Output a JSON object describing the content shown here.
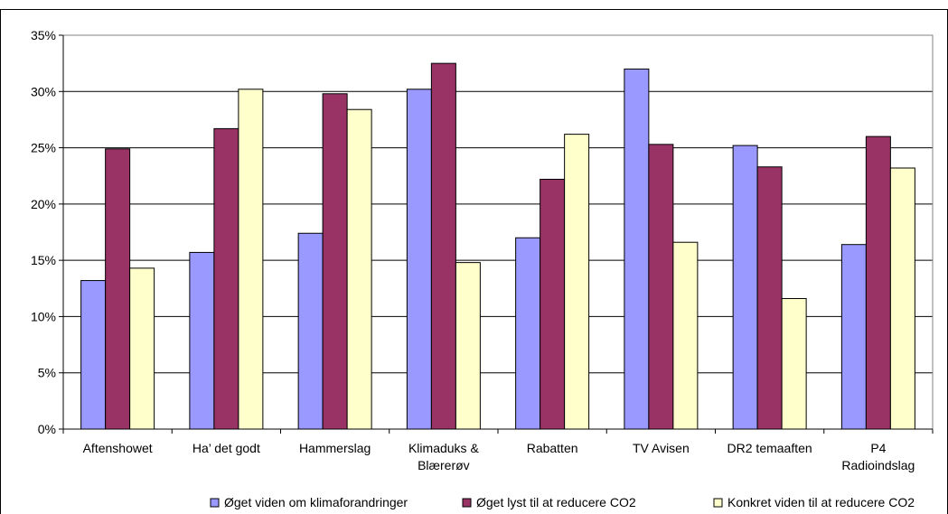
{
  "chart_data": {
    "type": "bar",
    "categories": [
      [
        "Aftenshowet"
      ],
      [
        "Ha’ det godt"
      ],
      [
        "Hammerslag"
      ],
      [
        "Klimaduks &",
        "Blærerøv"
      ],
      [
        "Rabatten"
      ],
      [
        "TV Avisen"
      ],
      [
        "DR2 temaaften"
      ],
      [
        "P4",
        "Radioindslag"
      ]
    ],
    "series": [
      {
        "name": "Øget viden om klimaforandringer",
        "color": "#9999ff",
        "values": [
          0.132,
          0.157,
          0.174,
          0.302,
          0.17,
          0.32,
          0.252,
          0.164
        ]
      },
      {
        "name": "Øget lyst til at reducere CO2",
        "color": "#993366",
        "values": [
          0.249,
          0.267,
          0.298,
          0.325,
          0.222,
          0.253,
          0.233,
          0.26
        ]
      },
      {
        "name": "Konkret viden til at reducere CO2",
        "color": "#ffffcc",
        "values": [
          0.143,
          0.302,
          0.284,
          0.148,
          0.262,
          0.166,
          0.116,
          0.232
        ]
      }
    ],
    "ylim": [
      0,
      0.35
    ],
    "yticks": [
      0,
      0.05,
      0.1,
      0.15,
      0.2,
      0.25,
      0.3,
      0.35
    ],
    "ytick_labels": [
      "0%",
      "5%",
      "10%",
      "15%",
      "20%",
      "25%",
      "30%",
      "35%"
    ],
    "grid": true,
    "legend_position": "bottom",
    "title": "",
    "xlabel": "",
    "ylabel": ""
  }
}
